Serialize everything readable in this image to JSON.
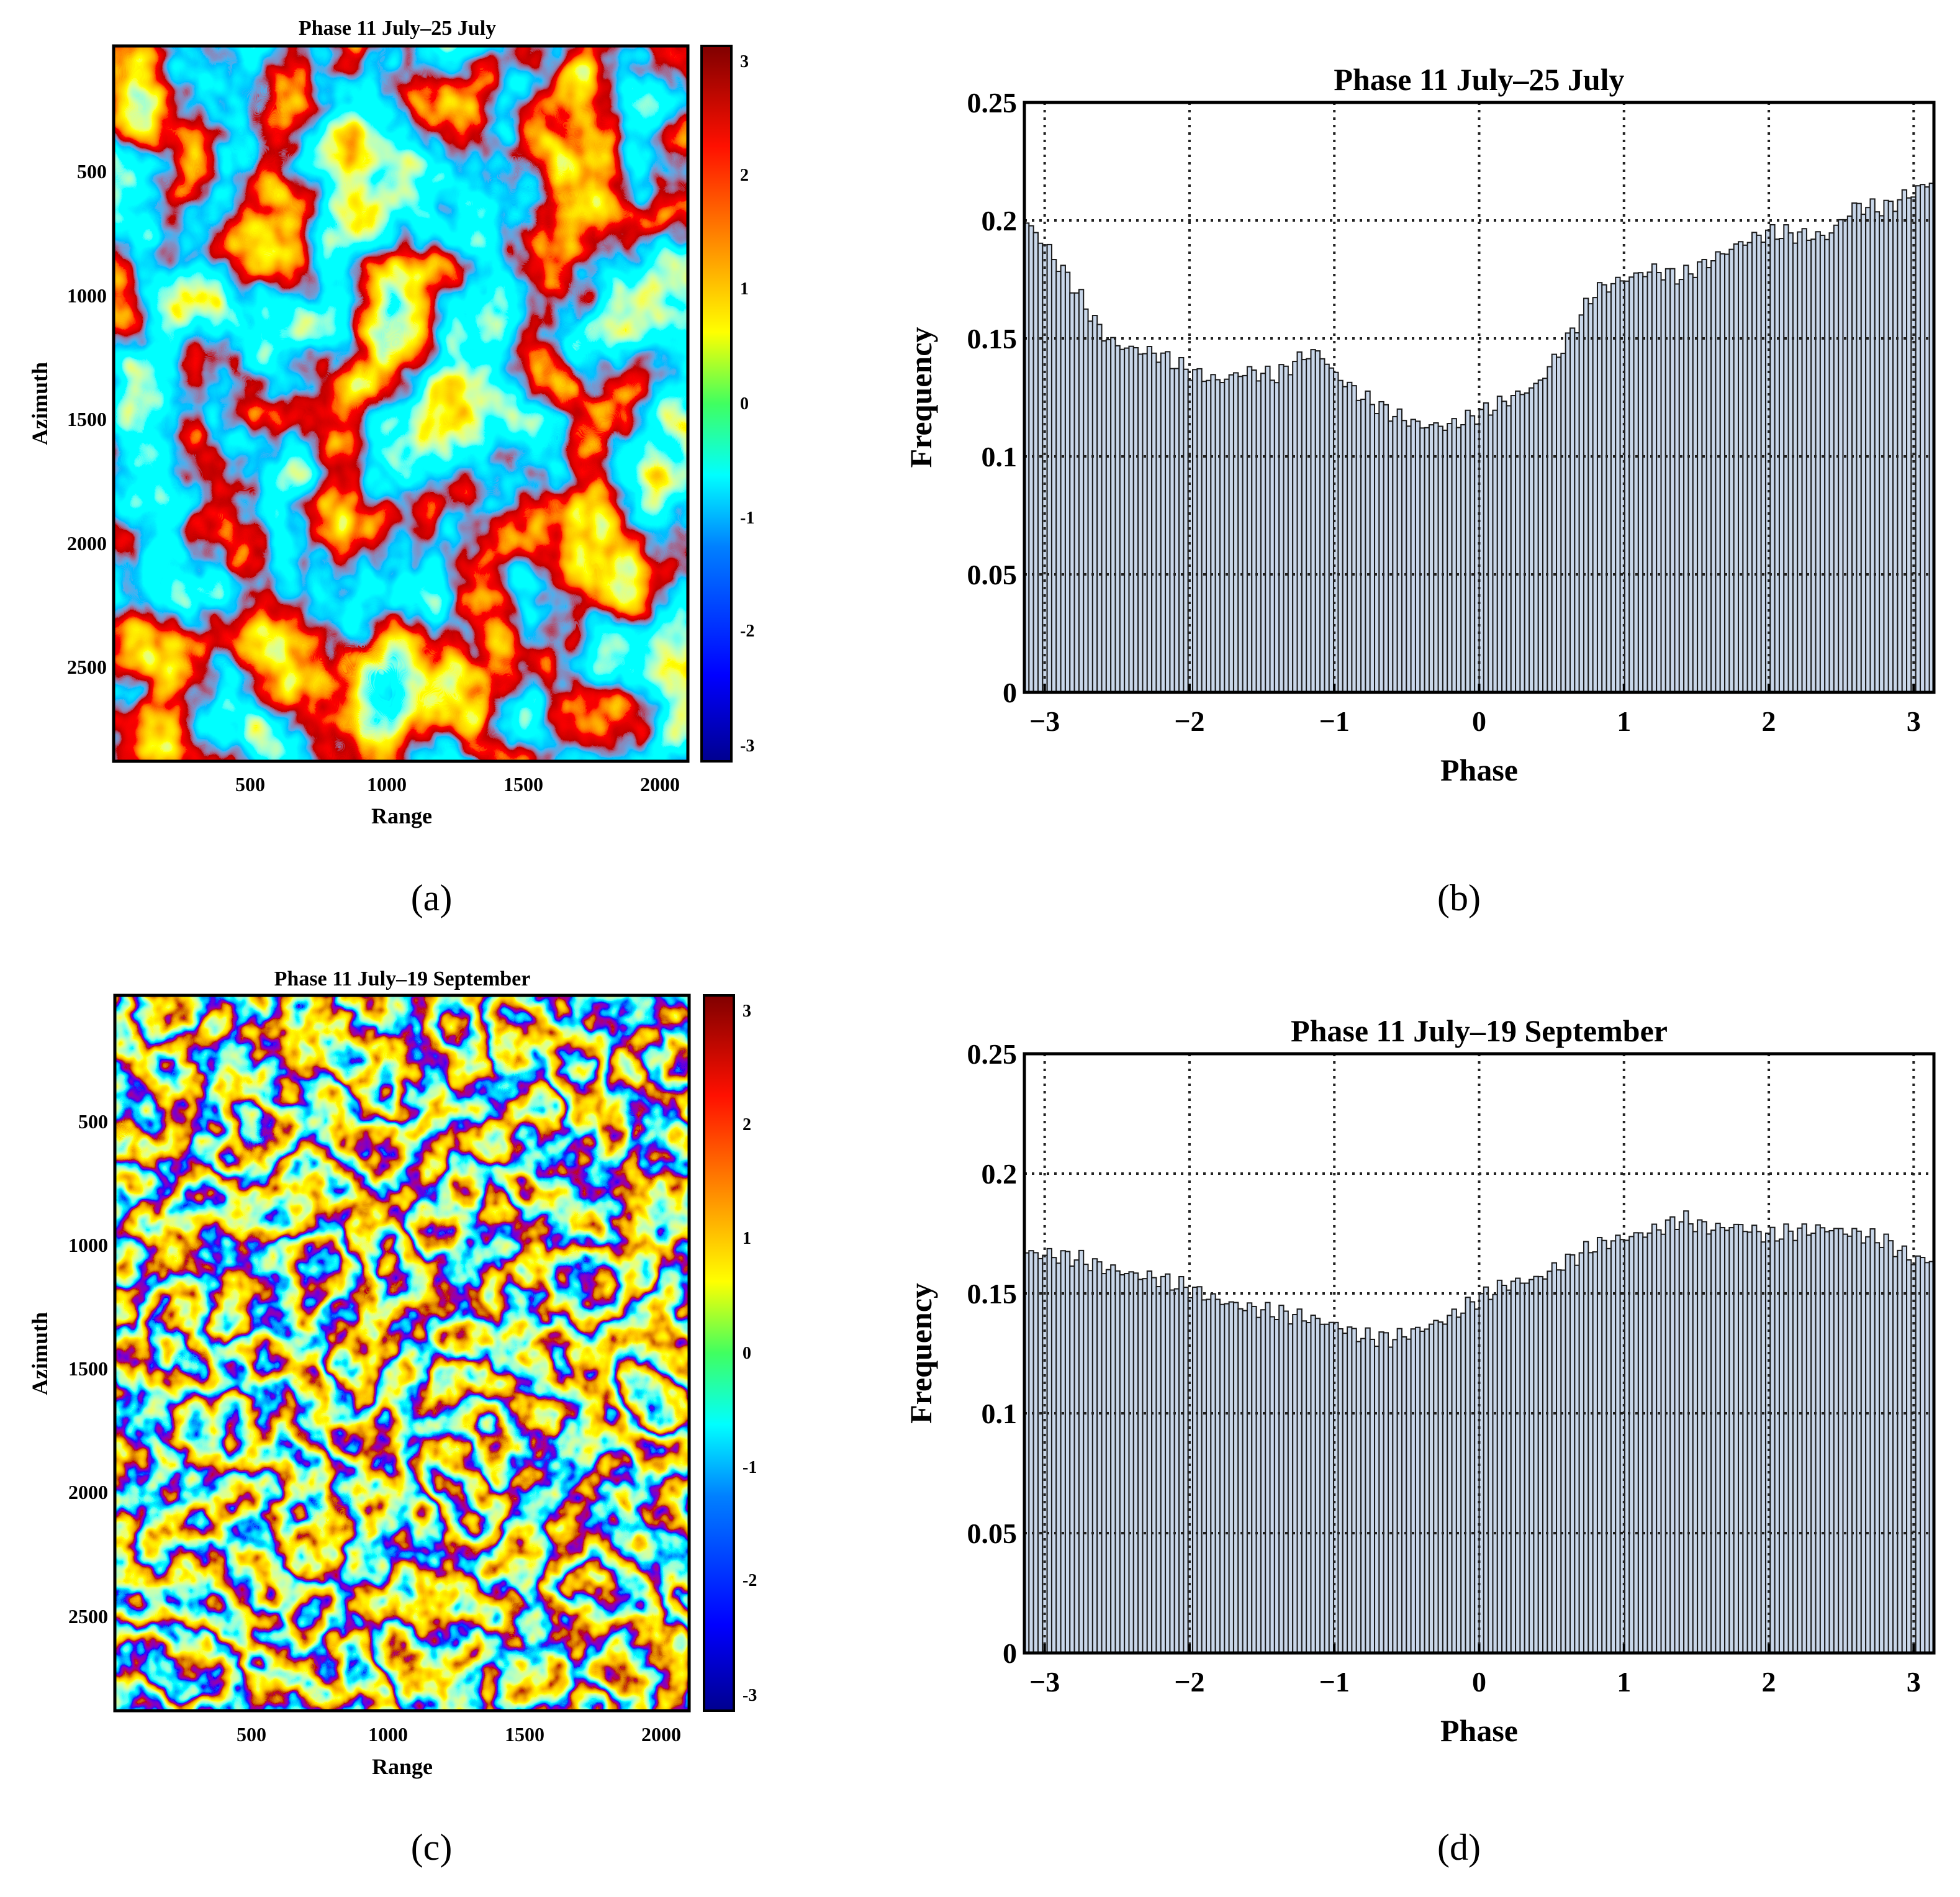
{
  "panels": {
    "a": {
      "title": "Phase 11 July–25 July",
      "xlabel": "Range",
      "ylabel": "Azimuth",
      "xticks": [
        "500",
        "1000",
        "1500",
        "2000"
      ],
      "yticks": [
        "500",
        "1000",
        "1500",
        "2000",
        "2500"
      ],
      "cbar_ticks": [
        "3",
        "2",
        "1",
        "0",
        "-1",
        "-2",
        "-3"
      ],
      "caption": "(a)"
    },
    "b": {
      "caption": "(b)"
    },
    "c": {
      "title": "Phase 11 July–19 September",
      "xlabel": "Range",
      "ylabel": "Azimuth",
      "xticks": [
        "500",
        "1000",
        "1500",
        "2000"
      ],
      "yticks": [
        "500",
        "1000",
        "1500",
        "2000",
        "2500"
      ],
      "cbar_ticks": [
        "3",
        "2",
        "1",
        "0",
        "-1",
        "-2",
        "-3"
      ],
      "caption": "(c)"
    },
    "d": {
      "caption": "(d)"
    }
  },
  "colormap": [
    "#00008f",
    "#0000ff",
    "#0080ff",
    "#00ffff",
    "#80ff80",
    "#ffff00",
    "#ff8000",
    "#ff0000",
    "#800000"
  ],
  "bar_color": "#c9d7ea",
  "chart_data": [
    {
      "type": "heatmap",
      "title": "Phase 11 July–25 July",
      "xlabel": "Range",
      "ylabel": "Azimuth",
      "xlim": [
        0,
        2100
      ],
      "ylim": [
        0,
        2900
      ],
      "colorbar_range": [
        -3.14,
        3.14
      ],
      "colormap": "jet"
    },
    {
      "type": "bar",
      "title": "Phase 11 July–25 July",
      "xlabel": "Phase",
      "ylabel": "Frequency",
      "xlim": [
        -3.14,
        3.14
      ],
      "ylim": [
        0,
        0.25
      ],
      "xticks": [
        -3,
        -2,
        -1,
        0,
        1,
        2,
        3
      ],
      "xtick_labels": [
        "−3",
        "−2",
        "−1",
        "0",
        "1",
        "2",
        "3"
      ],
      "yticks": [
        0,
        0.05,
        0.1,
        0.15,
        0.2,
        0.25
      ],
      "ytick_labels": [
        "0",
        "0.05",
        "0.1",
        "0.15",
        "0.2",
        "0.25"
      ],
      "grid": true,
      "curve": [
        [
          -3.14,
          0.2
        ],
        [
          -3.0,
          0.19
        ],
        [
          -2.8,
          0.172
        ],
        [
          -2.6,
          0.152
        ],
        [
          -2.5,
          0.147
        ],
        [
          -2.2,
          0.143
        ],
        [
          -2.0,
          0.136
        ],
        [
          -1.8,
          0.132
        ],
        [
          -1.6,
          0.136
        ],
        [
          -1.4,
          0.134
        ],
        [
          -1.2,
          0.143
        ],
        [
          -1.1,
          0.144
        ],
        [
          -1.0,
          0.135
        ],
        [
          -0.8,
          0.125
        ],
        [
          -0.6,
          0.118
        ],
        [
          -0.4,
          0.113
        ],
        [
          -0.2,
          0.113
        ],
        [
          0.0,
          0.118
        ],
        [
          0.2,
          0.124
        ],
        [
          0.4,
          0.13
        ],
        [
          0.6,
          0.148
        ],
        [
          0.8,
          0.17
        ],
        [
          1.0,
          0.175
        ],
        [
          1.2,
          0.179
        ],
        [
          1.4,
          0.176
        ],
        [
          1.6,
          0.183
        ],
        [
          1.8,
          0.19
        ],
        [
          2.0,
          0.195
        ],
        [
          2.2,
          0.194
        ],
        [
          2.4,
          0.193
        ],
        [
          2.6,
          0.206
        ],
        [
          2.8,
          0.205
        ],
        [
          3.0,
          0.212
        ],
        [
          3.14,
          0.217
        ]
      ]
    },
    {
      "type": "heatmap",
      "title": "Phase 11 July–19 September",
      "xlabel": "Range",
      "ylabel": "Azimuth",
      "xlim": [
        0,
        2100
      ],
      "ylim": [
        0,
        2900
      ],
      "colorbar_range": [
        -3.14,
        3.14
      ],
      "colormap": "jet"
    },
    {
      "type": "bar",
      "title": "Phase 11 July–19 September",
      "xlabel": "Phase",
      "ylabel": "Frequency",
      "xlim": [
        -3.14,
        3.14
      ],
      "ylim": [
        0,
        0.25
      ],
      "xticks": [
        -3,
        -2,
        -1,
        0,
        1,
        2,
        3
      ],
      "xtick_labels": [
        "−3",
        "−2",
        "−1",
        "0",
        "1",
        "2",
        "3"
      ],
      "yticks": [
        0,
        0.05,
        0.1,
        0.15,
        0.2,
        0.25
      ],
      "ytick_labels": [
        "0",
        "0.05",
        "0.1",
        "0.15",
        "0.2",
        "0.25"
      ],
      "grid": true,
      "curve": [
        [
          -3.14,
          0.167
        ],
        [
          -2.8,
          0.165
        ],
        [
          -2.6,
          0.161
        ],
        [
          -2.4,
          0.158
        ],
        [
          -2.2,
          0.156
        ],
        [
          -2.0,
          0.152
        ],
        [
          -1.8,
          0.147
        ],
        [
          -1.6,
          0.144
        ],
        [
          -1.4,
          0.142
        ],
        [
          -1.2,
          0.14
        ],
        [
          -1.0,
          0.137
        ],
        [
          -0.8,
          0.132
        ],
        [
          -0.6,
          0.131
        ],
        [
          -0.4,
          0.135
        ],
        [
          -0.2,
          0.14
        ],
        [
          0.0,
          0.148
        ],
        [
          0.2,
          0.154
        ],
        [
          0.4,
          0.156
        ],
        [
          0.6,
          0.163
        ],
        [
          0.8,
          0.17
        ],
        [
          1.0,
          0.173
        ],
        [
          1.2,
          0.176
        ],
        [
          1.4,
          0.181
        ],
        [
          1.6,
          0.177
        ],
        [
          1.8,
          0.178
        ],
        [
          2.0,
          0.174
        ],
        [
          2.2,
          0.176
        ],
        [
          2.4,
          0.177
        ],
        [
          2.6,
          0.175
        ],
        [
          2.8,
          0.172
        ],
        [
          3.0,
          0.164
        ],
        [
          3.14,
          0.164
        ]
      ]
    }
  ]
}
